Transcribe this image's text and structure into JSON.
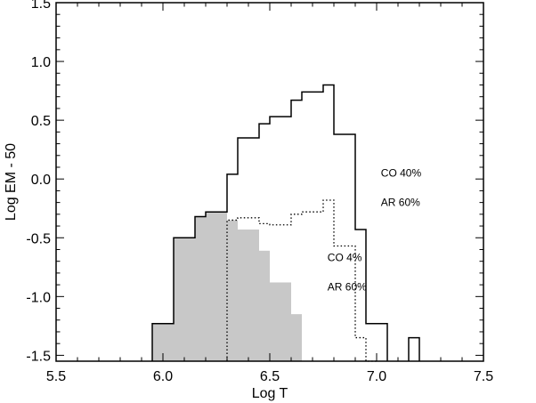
{
  "chart_data": {
    "type": "line",
    "xlabel": "Log T",
    "ylabel": "Log EM - 50",
    "xlim": [
      5.5,
      7.5
    ],
    "ylim": [
      -1.55,
      1.5
    ],
    "x_ticks": [
      5.5,
      6.0,
      6.5,
      7.0,
      7.5
    ],
    "x_tick_labels": [
      "5.5",
      "6.0",
      "6.5",
      "7.0",
      "7.5"
    ],
    "y_ticks": [
      -1.5,
      -1.0,
      -0.5,
      0.0,
      0.5,
      1.0,
      1.5
    ],
    "y_tick_labels": [
      "-1.5",
      "-1.0",
      "-0.5",
      "0.0",
      "0.5",
      "1.0",
      "1.5"
    ],
    "grid": false,
    "series": [
      {
        "style": "solid-step",
        "color": "#000000",
        "bins": [
          {
            "x0": 5.95,
            "x1": 6.05,
            "y": -1.23
          },
          {
            "x0": 6.05,
            "x1": 6.15,
            "y": -0.5
          },
          {
            "x0": 6.15,
            "x1": 6.2,
            "y": -0.32
          },
          {
            "x0": 6.2,
            "x1": 6.3,
            "y": -0.28
          },
          {
            "x0": 6.3,
            "x1": 6.35,
            "y": 0.04
          },
          {
            "x0": 6.35,
            "x1": 6.45,
            "y": 0.35
          },
          {
            "x0": 6.45,
            "x1": 6.5,
            "y": 0.47
          },
          {
            "x0": 6.5,
            "x1": 6.6,
            "y": 0.53
          },
          {
            "x0": 6.6,
            "x1": 6.65,
            "y": 0.67
          },
          {
            "x0": 6.65,
            "x1": 6.75,
            "y": 0.74
          },
          {
            "x0": 6.75,
            "x1": 6.8,
            "y": 0.8
          },
          {
            "x0": 6.8,
            "x1": 6.9,
            "y": 0.38
          },
          {
            "x0": 6.9,
            "x1": 6.95,
            "y": -0.43
          },
          {
            "x0": 6.95,
            "x1": 7.05,
            "y": -1.23
          },
          {
            "x0": 7.15,
            "x1": 7.2,
            "y": -1.35
          }
        ]
      },
      {
        "style": "dotted-step",
        "color": "#000000",
        "bins": [
          {
            "x0": 6.3,
            "x1": 6.35,
            "y": -0.35
          },
          {
            "x0": 6.35,
            "x1": 6.45,
            "y": -0.33
          },
          {
            "x0": 6.45,
            "x1": 6.5,
            "y": -0.38
          },
          {
            "x0": 6.5,
            "x1": 6.6,
            "y": -0.39
          },
          {
            "x0": 6.6,
            "x1": 6.65,
            "y": -0.3
          },
          {
            "x0": 6.65,
            "x1": 6.75,
            "y": -0.28
          },
          {
            "x0": 6.75,
            "x1": 6.8,
            "y": -0.18
          },
          {
            "x0": 6.8,
            "x1": 6.9,
            "y": -0.57
          },
          {
            "x0": 6.9,
            "x1": 6.95,
            "y": -1.35
          },
          {
            "x0": 6.95,
            "x1": 7.0,
            "y": -1.55
          }
        ]
      },
      {
        "style": "filled-step",
        "color": "#c8c8c8",
        "bins": [
          {
            "x0": 5.95,
            "x1": 6.05,
            "y": -1.23
          },
          {
            "x0": 6.05,
            "x1": 6.15,
            "y": -0.5
          },
          {
            "x0": 6.15,
            "x1": 6.2,
            "y": -0.32
          },
          {
            "x0": 6.2,
            "x1": 6.3,
            "y": -0.28
          },
          {
            "x0": 6.3,
            "x1": 6.35,
            "y": -0.35
          },
          {
            "x0": 6.35,
            "x1": 6.45,
            "y": -0.43
          },
          {
            "x0": 6.45,
            "x1": 6.5,
            "y": -0.61
          },
          {
            "x0": 6.5,
            "x1": 6.6,
            "y": -0.88
          },
          {
            "x0": 6.6,
            "x1": 6.65,
            "y": -1.15
          }
        ]
      }
    ],
    "annotations": [
      {
        "text": "CO 40%",
        "x": 7.02,
        "y": 0.02
      },
      {
        "text": "AR 60%",
        "x": 7.02,
        "y": -0.23
      },
      {
        "text": "CO  4%",
        "x": 6.77,
        "y": -0.7
      },
      {
        "text": "AR 60%",
        "x": 6.77,
        "y": -0.95
      }
    ]
  }
}
